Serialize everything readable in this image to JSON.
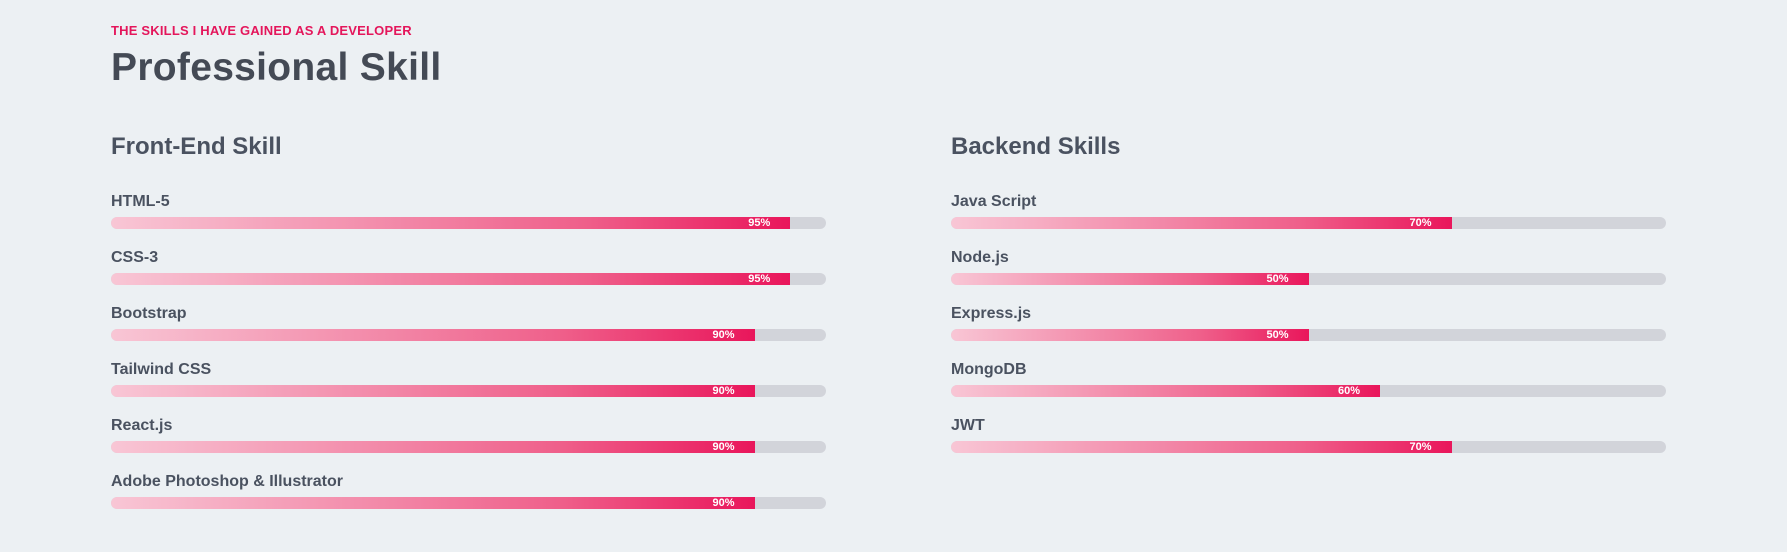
{
  "header": {
    "eyebrow": "THE SKILLS I HAVE GAINED AS A DEVELOPER",
    "title": "Professional Skill"
  },
  "frontend": {
    "title": "Front-End Skill",
    "skills": [
      {
        "name": "HTML-5",
        "percent_label": "95%",
        "percent": 95
      },
      {
        "name": "CSS-3",
        "percent_label": "95%",
        "percent": 95
      },
      {
        "name": "Bootstrap",
        "percent_label": "90%",
        "percent": 90
      },
      {
        "name": "Tailwind CSS",
        "percent_label": "90%",
        "percent": 90
      },
      {
        "name": "React.js",
        "percent_label": "90%",
        "percent": 90
      },
      {
        "name": "Adobe Photoshop & Illustrator",
        "percent_label": "90%",
        "percent": 90
      }
    ]
  },
  "backend": {
    "title": "Backend Skills",
    "skills": [
      {
        "name": "Java Script",
        "percent_label": "70%",
        "percent": 70
      },
      {
        "name": "Node.js",
        "percent_label": "50%",
        "percent": 50
      },
      {
        "name": "Express.js",
        "percent_label": "50%",
        "percent": 50
      },
      {
        "name": "MongoDB",
        "percent_label": "60%",
        "percent": 60
      },
      {
        "name": "JWT",
        "percent_label": "70%",
        "percent": 70
      }
    ]
  },
  "colors": {
    "accent": "#e4165b",
    "background": "#ecf0f3",
    "track": "#d2d4da",
    "heading": "#444a55"
  }
}
